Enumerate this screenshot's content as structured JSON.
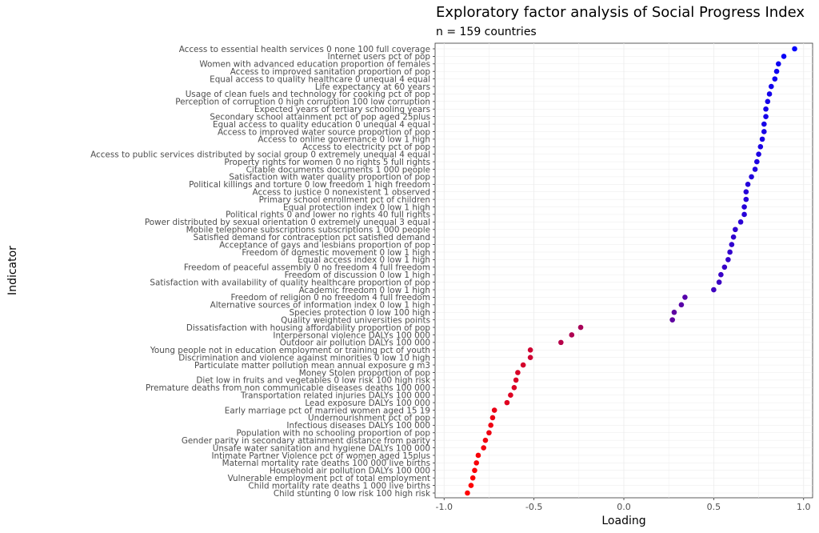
{
  "chart_data": {
    "type": "scatter",
    "title": "Exploratory factor analysis of Social Progress Index",
    "subtitle": "n = 159 countries",
    "xlabel": "Loading",
    "ylabel": "Indicator",
    "xlim": [
      -1.05,
      1.05
    ],
    "xticks": [
      -1.0,
      -0.5,
      0.0,
      0.5,
      1.0
    ],
    "xtick_labels": [
      "-1.0",
      "-0.5",
      "0.0",
      "0.5",
      "1.0"
    ],
    "grid": true,
    "color_scale": {
      "low": "#ff0000",
      "high": "#0000ff"
    },
    "points": [
      {
        "label": "Access to essential health services 0 none 100 full coverage",
        "value": 0.95
      },
      {
        "label": "Internet users pct of pop",
        "value": 0.89
      },
      {
        "label": "Women with advanced education proportion of females",
        "value": 0.86
      },
      {
        "label": "Access to improved sanitation proportion of pop",
        "value": 0.85
      },
      {
        "label": "Equal access to quality healthcare 0 unequal 4 equal",
        "value": 0.84
      },
      {
        "label": "Life expectancy at 60 years",
        "value": 0.82
      },
      {
        "label": "Usage of clean fuels and technology for cooking pct of pop",
        "value": 0.81
      },
      {
        "label": "Perception of corruption 0 high corruption 100 low corruption",
        "value": 0.8
      },
      {
        "label": "Expected years of tertiary schooling years",
        "value": 0.79
      },
      {
        "label": "Secondary school attainment pct of pop aged 25plus",
        "value": 0.79
      },
      {
        "label": "Equal access to quality education 0 unequal 4 equal",
        "value": 0.78
      },
      {
        "label": "Access to improved water source proportion of pop",
        "value": 0.78
      },
      {
        "label": "Access to online governance 0 low 1 high",
        "value": 0.77
      },
      {
        "label": "Access to electricity pct of pop",
        "value": 0.76
      },
      {
        "label": "Access to public services distributed by social group 0 extremely unequal 4 equal",
        "value": 0.75
      },
      {
        "label": "Property rights for women 0 no rights 5 full rights",
        "value": 0.74
      },
      {
        "label": "Citable documents documents 1 000 people",
        "value": 0.73
      },
      {
        "label": "Satisfaction with water quality proportion of pop",
        "value": 0.71
      },
      {
        "label": "Political killings and torture 0 low freedom 1 high freedom",
        "value": 0.69
      },
      {
        "label": "Access to justice 0 nonexistent 1 observed",
        "value": 0.68
      },
      {
        "label": "Primary school enrollment pct of children",
        "value": 0.68
      },
      {
        "label": "Equal protection index 0 low 1 high",
        "value": 0.67
      },
      {
        "label": "Political rights 0 and lower no rights 40 full rights",
        "value": 0.67
      },
      {
        "label": "Power distributed by sexual orientation 0 extremely unequal 3 equal",
        "value": 0.65
      },
      {
        "label": "Mobile telephone subscriptions subscriptions 1 000 people",
        "value": 0.62
      },
      {
        "label": "Satisfied demand for contraception pct satisfied demand",
        "value": 0.61
      },
      {
        "label": "Acceptance of gays and lesbians proportion of pop",
        "value": 0.6
      },
      {
        "label": "Freedom of domestic movement 0 low 1 high",
        "value": 0.59
      },
      {
        "label": "Equal access index 0 low 1 high",
        "value": 0.58
      },
      {
        "label": "Freedom of peaceful assembly 0 no freedom 4 full freedom",
        "value": 0.56
      },
      {
        "label": "Freedom of discussion 0 low 1 high",
        "value": 0.54
      },
      {
        "label": "Satisfaction with availability of quality healthcare proportion of pop",
        "value": 0.53
      },
      {
        "label": "Academic freedom 0 low 1 high",
        "value": 0.5
      },
      {
        "label": "Freedom of religion 0 no freedom 4 full freedom",
        "value": 0.34
      },
      {
        "label": "Alternative sources of information index 0 low 1 high",
        "value": 0.32
      },
      {
        "label": "Species protection 0 low 100 high",
        "value": 0.28
      },
      {
        "label": "Quality weighted universities points",
        "value": 0.27
      },
      {
        "label": "Dissatisfaction with housing affordability proportion of pop",
        "value": -0.24
      },
      {
        "label": "Interpersonal violence DALYs 100 000",
        "value": -0.29
      },
      {
        "label": "Outdoor air pollution DALYs 100 000",
        "value": -0.35
      },
      {
        "label": "Young people not in education employment or training pct of youth",
        "value": -0.52
      },
      {
        "label": "Discrimination and violence against minorities 0 low 10 high",
        "value": -0.52
      },
      {
        "label": "Particulate matter pollution mean annual exposure g m3",
        "value": -0.56
      },
      {
        "label": "Money Stolen proportion of pop",
        "value": -0.59
      },
      {
        "label": "Diet low in fruits and vegetables 0 low risk 100 high risk",
        "value": -0.6
      },
      {
        "label": "Premature deaths from non communicable diseases deaths 100 000",
        "value": -0.61
      },
      {
        "label": "Transportation related injuries DALYs 100 000",
        "value": -0.63
      },
      {
        "label": "Lead exposure DALYs 100 000",
        "value": -0.65
      },
      {
        "label": "Early marriage pct of married women aged 15 19",
        "value": -0.72
      },
      {
        "label": "Undernourishment pct of pop",
        "value": -0.73
      },
      {
        "label": "Infectious diseases DALYs 100 000",
        "value": -0.74
      },
      {
        "label": "Population with no schooling proportion of pop",
        "value": -0.75
      },
      {
        "label": "Gender parity in secondary attainment distance from parity",
        "value": -0.77
      },
      {
        "label": "Unsafe water sanitation and hygiene DALYs 100 000",
        "value": -0.78
      },
      {
        "label": "Intimate Partner Violence pct of women aged 15plus",
        "value": -0.81
      },
      {
        "label": "Maternal mortality rate deaths 100 000 live births",
        "value": -0.82
      },
      {
        "label": "Household air pollution DALYs 100 000",
        "value": -0.83
      },
      {
        "label": "Vulnerable employment pct of total employment",
        "value": -0.84
      },
      {
        "label": "Child mortality rate deaths 1 000 live births",
        "value": -0.85
      },
      {
        "label": "Child stunting 0 low risk 100 high risk",
        "value": -0.87
      }
    ]
  }
}
